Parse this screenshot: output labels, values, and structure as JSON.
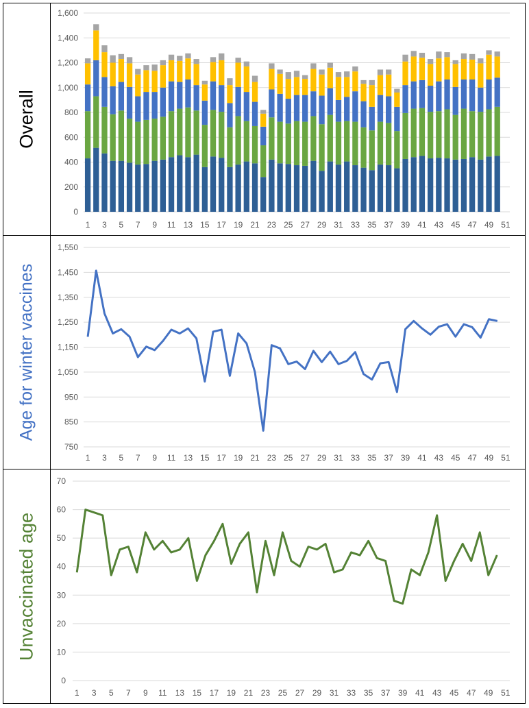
{
  "panels": {
    "overall_label": "Overall",
    "winter_label": "Age for winter vaccines",
    "unvaccinated_label": "Unvaccinated age"
  },
  "colors": {
    "dark_blue": "#2e5f95",
    "green": "#6aa642",
    "blue": "#4472c4",
    "yellow": "#ffc000",
    "gray": "#a5a5a5",
    "orange": "#ed7d31",
    "winter_line": "#4472c4",
    "unvaccinated_line": "#548235",
    "overall_label_color": "#000000",
    "winter_label_color": "#4472c4",
    "unvaccinated_label_color": "#548235"
  },
  "chart_data": [
    {
      "type": "bar",
      "stacked": true,
      "x": [
        1,
        2,
        3,
        4,
        5,
        6,
        7,
        8,
        9,
        10,
        11,
        12,
        13,
        14,
        15,
        16,
        17,
        18,
        19,
        20,
        21,
        22,
        23,
        24,
        25,
        26,
        27,
        28,
        29,
        30,
        31,
        32,
        33,
        34,
        35,
        36,
        37,
        38,
        39,
        40,
        41,
        42,
        43,
        44,
        45,
        46,
        47,
        48,
        49,
        50
      ],
      "x_tick_labels": [
        "1",
        "3",
        "5",
        "7",
        "9",
        "11",
        "13",
        "15",
        "17",
        "19",
        "21",
        "23",
        "25",
        "27",
        "29",
        "31",
        "33",
        "35",
        "37",
        "39",
        "41",
        "43",
        "45",
        "47",
        "49",
        "51"
      ],
      "ylim": [
        0,
        1600
      ],
      "y_ticks": [
        "0",
        "200",
        "400",
        "600",
        "800",
        "1,000",
        "1,200",
        "1,400",
        "1,600"
      ],
      "y_tick_values": [
        0,
        200,
        400,
        600,
        800,
        1000,
        1200,
        1400,
        1600
      ],
      "grid": true,
      "series": [
        {
          "color": "#2e5f95",
          "values": [
            430,
            515,
            470,
            410,
            410,
            395,
            380,
            385,
            410,
            420,
            440,
            455,
            440,
            460,
            360,
            445,
            435,
            360,
            380,
            405,
            390,
            280,
            420,
            390,
            385,
            375,
            370,
            410,
            330,
            405,
            380,
            405,
            375,
            355,
            335,
            380,
            375,
            350,
            425,
            440,
            450,
            430,
            435,
            430,
            420,
            425,
            440,
            420,
            445,
            450
          ]
        },
        {
          "color": "#6aa642",
          "values": [
            380,
            415,
            375,
            375,
            405,
            355,
            345,
            355,
            340,
            345,
            370,
            375,
            400,
            355,
            340,
            375,
            370,
            320,
            390,
            325,
            300,
            255,
            340,
            335,
            325,
            355,
            355,
            360,
            375,
            375,
            345,
            325,
            350,
            325,
            320,
            345,
            340,
            300,
            370,
            390,
            385,
            375,
            375,
            395,
            360,
            405,
            370,
            385,
            380,
            395
          ]
        },
        {
          "color": "#4472c4",
          "values": [
            215,
            290,
            240,
            225,
            230,
            255,
            205,
            225,
            215,
            235,
            240,
            215,
            225,
            205,
            195,
            230,
            215,
            195,
            235,
            235,
            195,
            150,
            225,
            225,
            200,
            210,
            215,
            200,
            230,
            215,
            175,
            195,
            245,
            210,
            190,
            215,
            215,
            195,
            225,
            220,
            225,
            210,
            240,
            240,
            225,
            235,
            255,
            195,
            240,
            235
          ]
        },
        {
          "color": "#ffc000",
          "values": [
            170,
            240,
            200,
            190,
            185,
            190,
            175,
            175,
            170,
            180,
            170,
            170,
            170,
            170,
            130,
            155,
            200,
            145,
            195,
            205,
            160,
            105,
            165,
            160,
            160,
            145,
            130,
            180,
            170,
            165,
            185,
            160,
            160,
            140,
            175,
            160,
            175,
            115,
            190,
            200,
            180,
            175,
            185,
            180,
            185,
            165,
            160,
            195,
            200,
            170
          ]
        },
        {
          "color": "#a5a5a5",
          "values": [
            40,
            50,
            55,
            60,
            40,
            50,
            45,
            40,
            50,
            40,
            45,
            40,
            40,
            40,
            30,
            40,
            55,
            55,
            40,
            40,
            50,
            30,
            45,
            35,
            55,
            50,
            30,
            45,
            40,
            40,
            40,
            45,
            40,
            30,
            40,
            45,
            40,
            30,
            55,
            45,
            40,
            40,
            55,
            40,
            30,
            45,
            45,
            40,
            35,
            40
          ]
        }
      ]
    },
    {
      "type": "line",
      "x": [
        1,
        2,
        3,
        4,
        5,
        6,
        7,
        8,
        9,
        10,
        11,
        12,
        13,
        14,
        15,
        16,
        17,
        18,
        19,
        20,
        21,
        22,
        23,
        24,
        25,
        26,
        27,
        28,
        29,
        30,
        31,
        32,
        33,
        34,
        35,
        36,
        37,
        38,
        39,
        40,
        41,
        42,
        43,
        44,
        45,
        46,
        47,
        48,
        49,
        50
      ],
      "x_tick_labels": [
        "1",
        "3",
        "5",
        "7",
        "9",
        "11",
        "13",
        "15",
        "17",
        "19",
        "21",
        "23",
        "25",
        "27",
        "29",
        "31",
        "33",
        "35",
        "37",
        "39",
        "41",
        "43",
        "45",
        "47",
        "49",
        "51"
      ],
      "ylim": [
        750,
        1550
      ],
      "y_ticks": [
        "750",
        "850",
        "950",
        "1,050",
        "1,150",
        "1,250",
        "1,350",
        "1,450",
        "1,550"
      ],
      "y_tick_values": [
        750,
        850,
        950,
        1050,
        1150,
        1250,
        1350,
        1450,
        1550
      ],
      "grid": true,
      "series": [
        {
          "color": "#4472c4",
          "values": [
            1192,
            1457,
            1285,
            1205,
            1222,
            1192,
            1110,
            1152,
            1138,
            1175,
            1220,
            1205,
            1225,
            1185,
            1012,
            1212,
            1220,
            1035,
            1205,
            1165,
            1050,
            815,
            1158,
            1145,
            1082,
            1092,
            1062,
            1135,
            1090,
            1132,
            1082,
            1095,
            1130,
            1042,
            1020,
            1085,
            1090,
            970,
            1222,
            1255,
            1225,
            1200,
            1232,
            1242,
            1192,
            1242,
            1230,
            1188,
            1262,
            1255
          ]
        }
      ]
    },
    {
      "type": "line",
      "x": [
        1,
        2,
        3,
        4,
        5,
        6,
        7,
        8,
        9,
        10,
        11,
        12,
        13,
        14,
        15,
        16,
        17,
        18,
        19,
        20,
        21,
        22,
        23,
        24,
        25,
        26,
        27,
        28,
        29,
        30,
        31,
        32,
        33,
        34,
        35,
        36,
        37,
        38,
        39,
        40,
        41,
        42,
        43,
        44,
        45,
        46,
        47,
        48,
        49,
        50
      ],
      "x_tick_labels": [
        "1",
        "3",
        "5",
        "7",
        "9",
        "11",
        "13",
        "15",
        "17",
        "19",
        "21",
        "23",
        "25",
        "27",
        "29",
        "31",
        "33",
        "35",
        "37",
        "39",
        "41",
        "43",
        "45",
        "47",
        "49",
        "51"
      ],
      "ylim": [
        0,
        70
      ],
      "y_ticks": [
        "0",
        "10",
        "20",
        "30",
        "40",
        "50",
        "60",
        "70"
      ],
      "y_tick_values": [
        0,
        10,
        20,
        30,
        40,
        50,
        60,
        70
      ],
      "grid": true,
      "series": [
        {
          "color": "#548235",
          "values": [
            38,
            60,
            59,
            58,
            37,
            46,
            47,
            38,
            52,
            46,
            49,
            45,
            46,
            50,
            35,
            44,
            49,
            55,
            41,
            48,
            52,
            31,
            49,
            37,
            52,
            42,
            40,
            47,
            46,
            48,
            38,
            39,
            45,
            44,
            49,
            43,
            42,
            28,
            27,
            39,
            37,
            45,
            58,
            35,
            42,
            48,
            42,
            52,
            37,
            44
          ]
        }
      ]
    }
  ]
}
